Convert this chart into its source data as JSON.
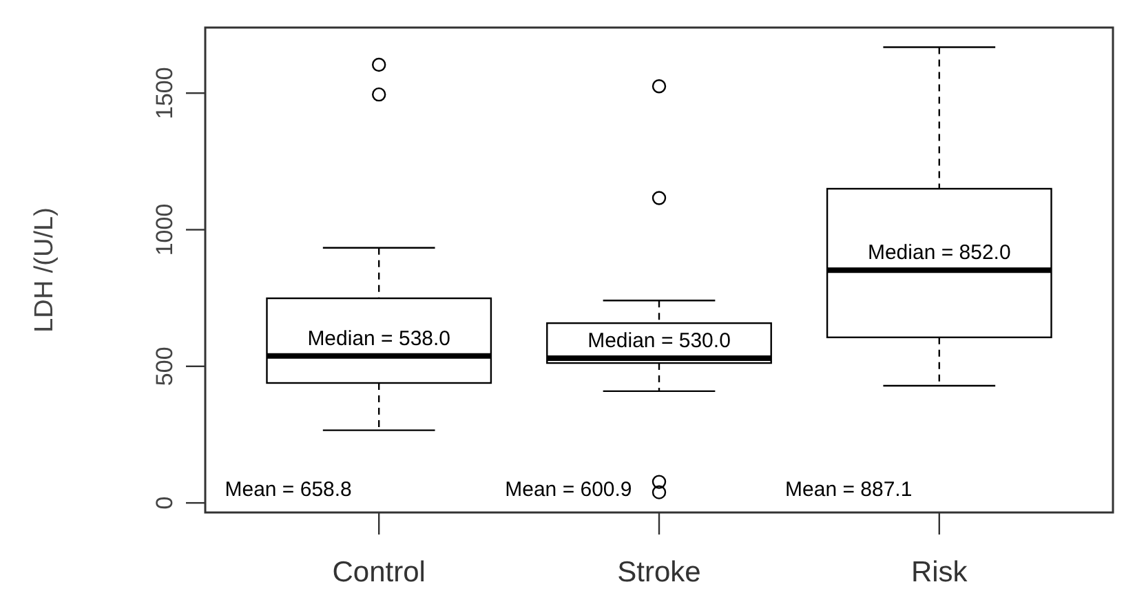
{
  "chart_data": {
    "type": "box",
    "ylabel": "LDH /(U/L)",
    "categories": [
      "Control",
      "Stroke",
      "Risk"
    ],
    "ylim": [
      -35,
      1740
    ],
    "yticks": [
      0,
      500,
      1000,
      1500
    ],
    "boxes": [
      {
        "low": 266,
        "q1": 439,
        "median": 538,
        "q3": 749,
        "high": 934,
        "outliers": [
          1495,
          1604
        ]
      },
      {
        "low": 409,
        "q1": 512,
        "median": 530,
        "q3": 658,
        "high": 741,
        "outliers": [
          39,
          77,
          1116,
          1525
        ]
      },
      {
        "low": 429,
        "q1": 606,
        "median": 852,
        "q3": 1150,
        "high": 1668
      }
    ],
    "annotations": [
      {
        "text": "Median = 538.0",
        "x": "Control",
        "y": 538
      },
      {
        "text": "Median = 530.0",
        "x": "Stroke",
        "y": 530
      },
      {
        "text": "Median = 852.0",
        "x": "Risk",
        "y": 852
      },
      "Mean = 658.8",
      "Mean = 600.9",
      "Mean = 887.1"
    ]
  }
}
